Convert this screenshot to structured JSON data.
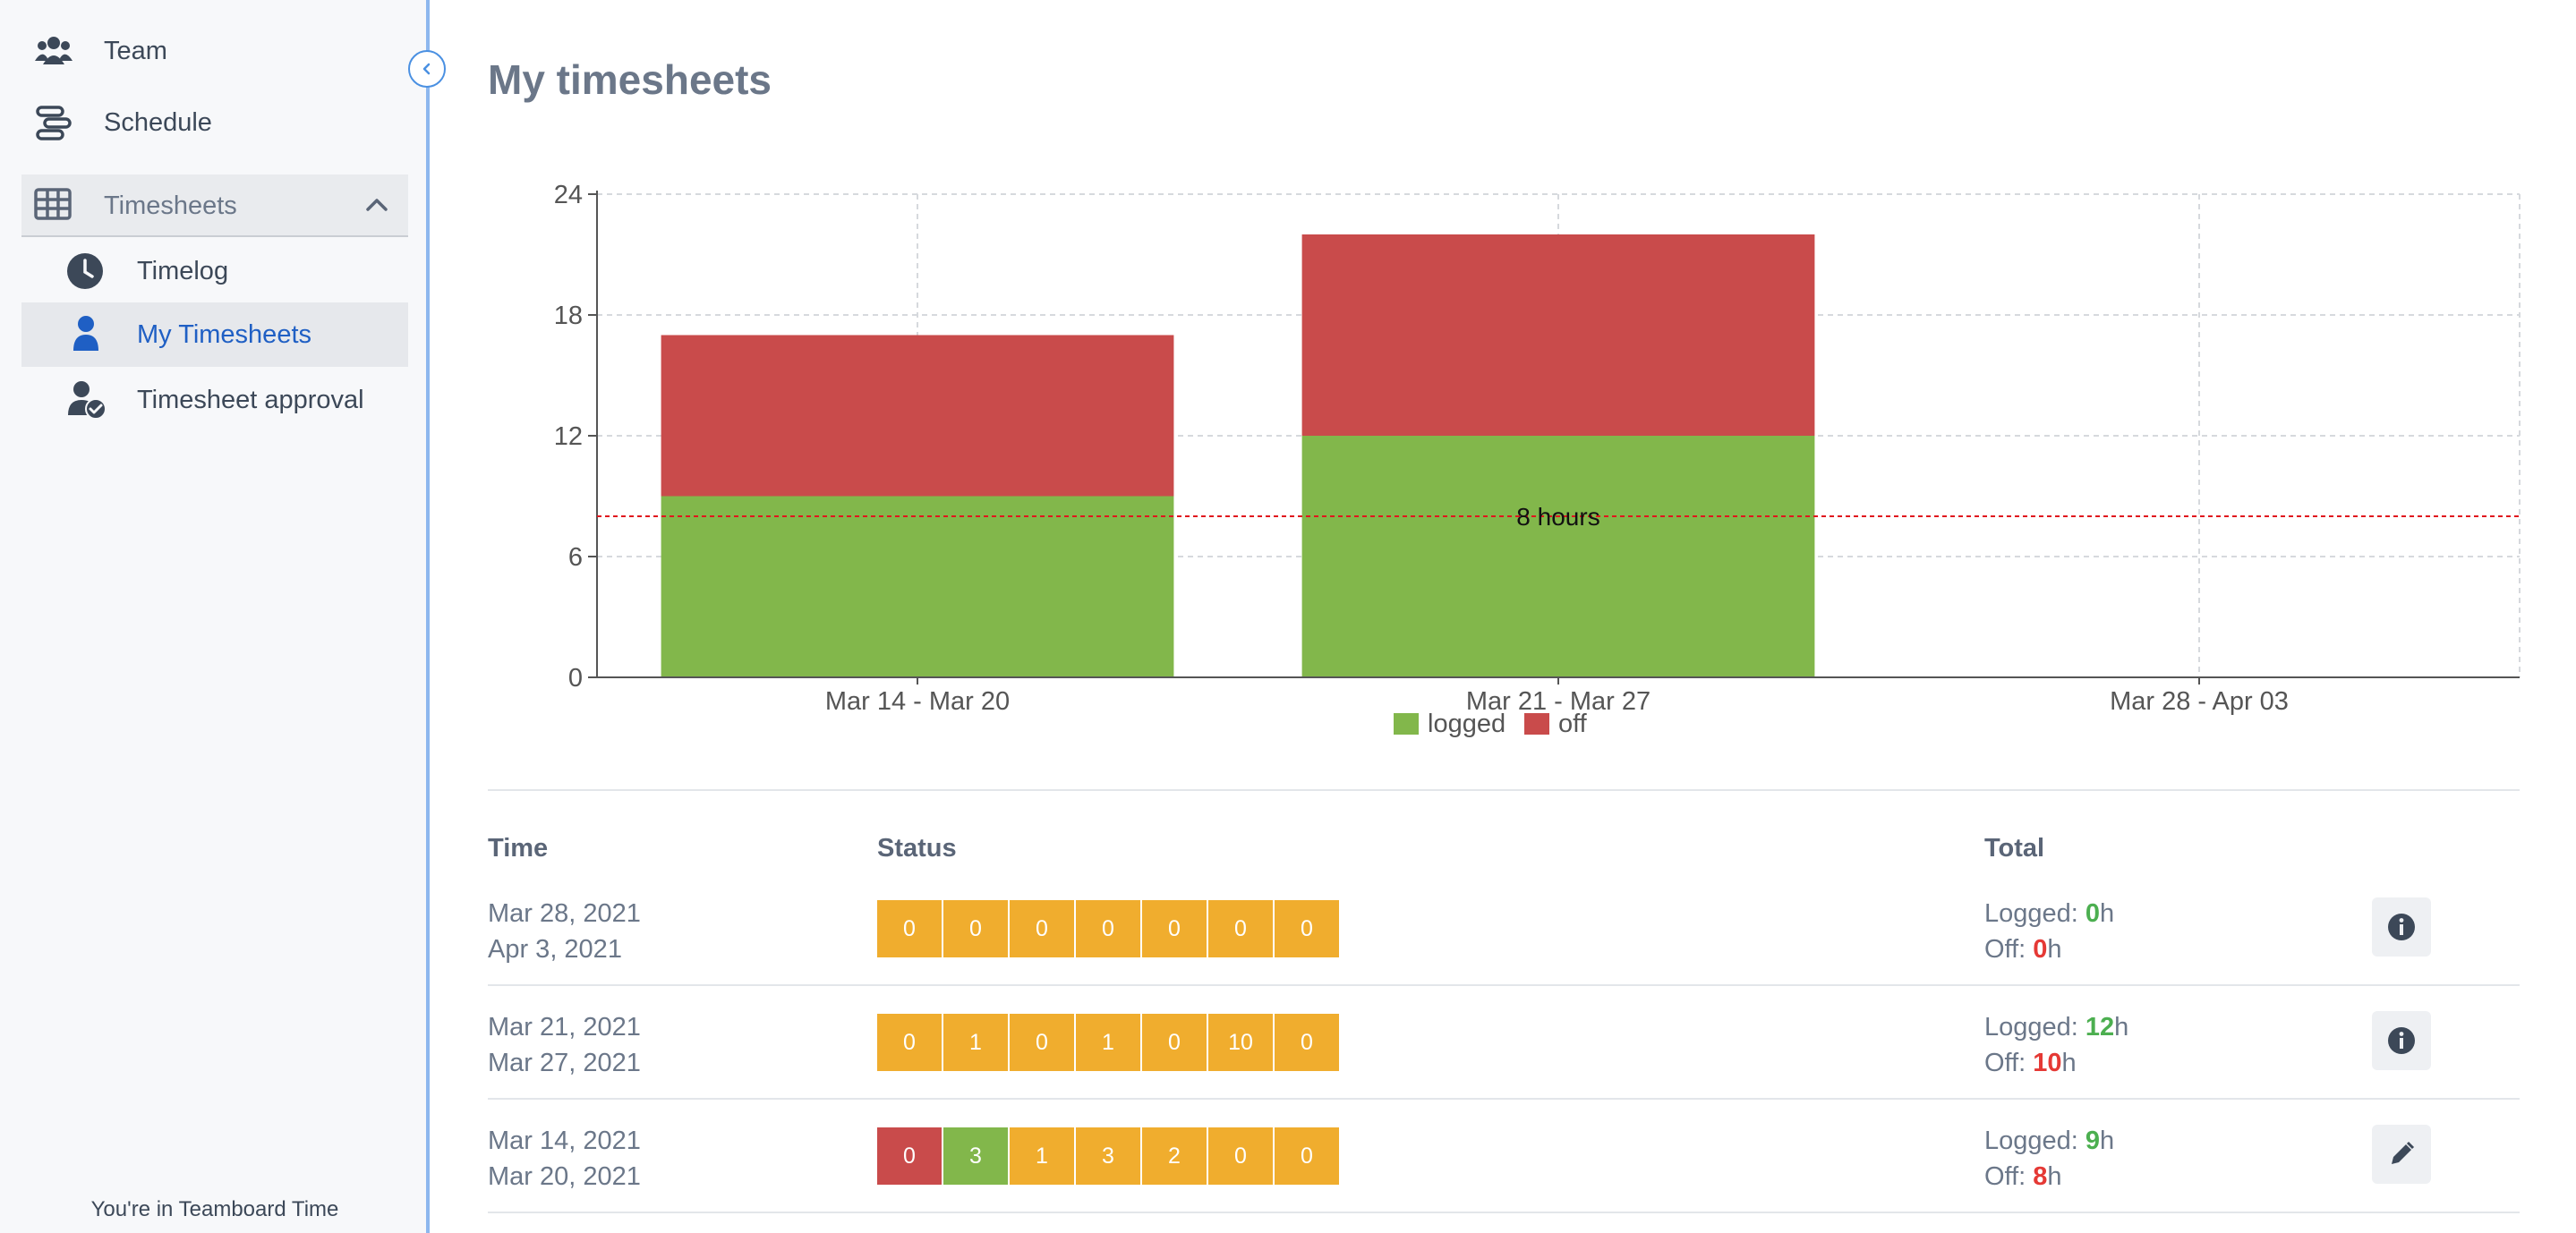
{
  "sidebar": {
    "items": [
      {
        "label": "Team",
        "icon": "users-icon"
      },
      {
        "label": "Schedule",
        "icon": "schedule-icon"
      }
    ],
    "group": {
      "label": "Timesheets",
      "icon": "grid-icon",
      "expanded": true
    },
    "subitems": [
      {
        "label": "Timelog",
        "icon": "clock-icon",
        "active": false
      },
      {
        "label": "My Timesheets",
        "icon": "user-icon",
        "active": true
      },
      {
        "label": "Timesheet approval",
        "icon": "user-check-icon",
        "active": false
      }
    ],
    "footer": "You're in Teamboard Time"
  },
  "page": {
    "title": "My timesheets"
  },
  "colors": {
    "logged": "#82b74b",
    "off": "#c94b4b",
    "pending": "#f0ad2e",
    "active_link": "#1f5fc4",
    "reference_line": "#e0161d"
  },
  "chart_data": {
    "type": "bar",
    "stacked": true,
    "categories": [
      "Mar 14 - Mar 20",
      "Mar 21 - Mar 27",
      "Mar 28 - Apr 03"
    ],
    "series": [
      {
        "name": "logged",
        "values": [
          9,
          12,
          0
        ]
      },
      {
        "name": "off",
        "values": [
          8,
          10,
          0
        ]
      }
    ],
    "y_ticks": [
      0,
      6,
      12,
      18,
      24
    ],
    "ylim": [
      0,
      24
    ],
    "reference_line": {
      "value": 8,
      "label": "8 hours"
    },
    "grid": true,
    "legend_position": "bottom"
  },
  "table": {
    "headers": {
      "time": "Time",
      "status": "Status",
      "total": "Total"
    },
    "logged_label": "Logged:",
    "off_label": "Off:",
    "hours_unit": "h",
    "rows": [
      {
        "start": "Mar 28, 2021",
        "end": "Apr 3, 2021",
        "days": [
          {
            "v": "0",
            "s": "pending"
          },
          {
            "v": "0",
            "s": "pending"
          },
          {
            "v": "0",
            "s": "pending"
          },
          {
            "v": "0",
            "s": "pending"
          },
          {
            "v": "0",
            "s": "pending"
          },
          {
            "v": "0",
            "s": "pending"
          },
          {
            "v": "0",
            "s": "pending"
          }
        ],
        "logged": "0",
        "off": "0",
        "action": "info-icon"
      },
      {
        "start": "Mar 21, 2021",
        "end": "Mar 27, 2021",
        "days": [
          {
            "v": "0",
            "s": "pending"
          },
          {
            "v": "1",
            "s": "pending"
          },
          {
            "v": "0",
            "s": "pending"
          },
          {
            "v": "1",
            "s": "pending"
          },
          {
            "v": "0",
            "s": "pending"
          },
          {
            "v": "10",
            "s": "pending"
          },
          {
            "v": "0",
            "s": "pending"
          }
        ],
        "logged": "12",
        "off": "10",
        "action": "info-icon"
      },
      {
        "start": "Mar 14, 2021",
        "end": "Mar 20, 2021",
        "days": [
          {
            "v": "0",
            "s": "off"
          },
          {
            "v": "3",
            "s": "logged"
          },
          {
            "v": "1",
            "s": "pending"
          },
          {
            "v": "3",
            "s": "pending"
          },
          {
            "v": "2",
            "s": "pending"
          },
          {
            "v": "0",
            "s": "pending"
          },
          {
            "v": "0",
            "s": "pending"
          }
        ],
        "logged": "9",
        "off": "8",
        "action": "pencil-icon"
      }
    ]
  }
}
